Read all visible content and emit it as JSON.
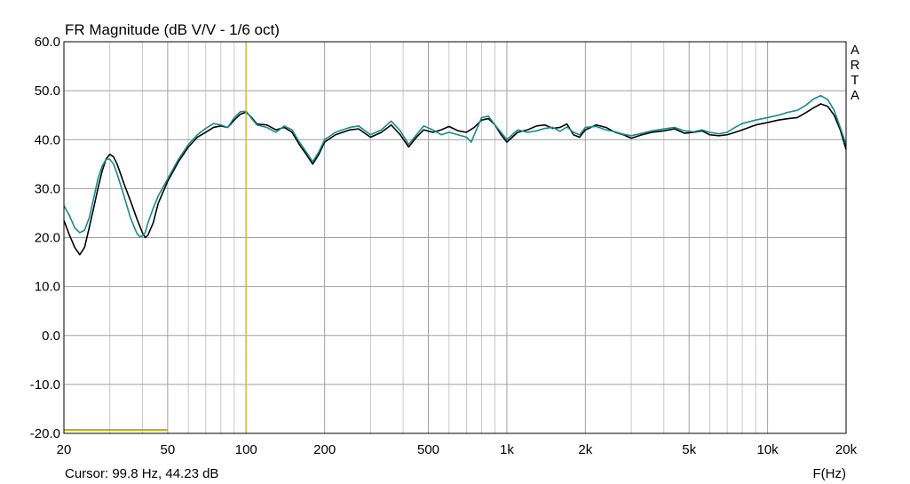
{
  "chart_data": {
    "type": "line",
    "title": "FR Magnitude (dB V/V - 1/6 oct)",
    "xlabel": "F(Hz)",
    "ylabel": "",
    "x_scale": "log",
    "xlim": [
      20,
      20000
    ],
    "ylim": [
      -20,
      60
    ],
    "grid": true,
    "x_ticks": [
      {
        "value": 20,
        "label": "20"
      },
      {
        "value": 50,
        "label": "50"
      },
      {
        "value": 100,
        "label": "100"
      },
      {
        "value": 200,
        "label": "200"
      },
      {
        "value": 500,
        "label": "500"
      },
      {
        "value": 1000,
        "label": "1k"
      },
      {
        "value": 2000,
        "label": "2k"
      },
      {
        "value": 5000,
        "label": "5k"
      },
      {
        "value": 10000,
        "label": "10k"
      },
      {
        "value": 20000,
        "label": "20k"
      }
    ],
    "y_ticks": [
      {
        "value": 60,
        "label": "60.0"
      },
      {
        "value": 50,
        "label": "50.0"
      },
      {
        "value": 40,
        "label": "40.0"
      },
      {
        "value": 30,
        "label": "30.0"
      },
      {
        "value": 20,
        "label": "20.0"
      },
      {
        "value": 10,
        "label": "10.0"
      },
      {
        "value": 0,
        "label": "0.0"
      },
      {
        "value": -10,
        "label": "-10.0"
      },
      {
        "value": -20,
        "label": "-20.0"
      }
    ],
    "watermark": "ARTA",
    "cursor_text": "Cursor: 99.8 Hz, 44.23 dB",
    "cursor_x": 99.8,
    "reference_level": {
      "y": -19.3,
      "x_start": 20,
      "x_end": 50,
      "color": "#b3b300"
    },
    "cursor_color": "#c8c800",
    "series": [
      {
        "color": "#000000",
        "points": [
          [
            20,
            23.5
          ],
          [
            21,
            20.5
          ],
          [
            22,
            18
          ],
          [
            23,
            16.5
          ],
          [
            24,
            18
          ],
          [
            25,
            22
          ],
          [
            26,
            26
          ],
          [
            27,
            30
          ],
          [
            28,
            33.5
          ],
          [
            29,
            36
          ],
          [
            30,
            37
          ],
          [
            31,
            36.5
          ],
          [
            32,
            35
          ],
          [
            34,
            31
          ],
          [
            36,
            27.5
          ],
          [
            38,
            24
          ],
          [
            40,
            21
          ],
          [
            41,
            20
          ],
          [
            42,
            20.5
          ],
          [
            44,
            23
          ],
          [
            46,
            27
          ],
          [
            50,
            31.5
          ],
          [
            55,
            35.5
          ],
          [
            60,
            38.5
          ],
          [
            65,
            40.5
          ],
          [
            70,
            41.5
          ],
          [
            75,
            42.5
          ],
          [
            80,
            42.8
          ],
          [
            85,
            42.5
          ],
          [
            90,
            44
          ],
          [
            95,
            45.2
          ],
          [
            100,
            45.6
          ],
          [
            105,
            44.5
          ],
          [
            110,
            43.2
          ],
          [
            120,
            43
          ],
          [
            130,
            42
          ],
          [
            140,
            42.5
          ],
          [
            150,
            41.5
          ],
          [
            160,
            39
          ],
          [
            170,
            37
          ],
          [
            180,
            35
          ],
          [
            190,
            37
          ],
          [
            200,
            39.5
          ],
          [
            220,
            41
          ],
          [
            250,
            42
          ],
          [
            270,
            42.2
          ],
          [
            300,
            40.5
          ],
          [
            330,
            41.5
          ],
          [
            360,
            43
          ],
          [
            390,
            41
          ],
          [
            420,
            38.5
          ],
          [
            450,
            40.5
          ],
          [
            480,
            42
          ],
          [
            520,
            41.5
          ],
          [
            560,
            42
          ],
          [
            600,
            42.7
          ],
          [
            650,
            41.8
          ],
          [
            700,
            41.5
          ],
          [
            750,
            42.5
          ],
          [
            800,
            44
          ],
          [
            850,
            44.3
          ],
          [
            900,
            43
          ],
          [
            950,
            41
          ],
          [
            1000,
            39.5
          ],
          [
            1100,
            41.5
          ],
          [
            1200,
            42
          ],
          [
            1300,
            42.8
          ],
          [
            1400,
            43
          ],
          [
            1500,
            42.3
          ],
          [
            1600,
            42.5
          ],
          [
            1700,
            43.2
          ],
          [
            1800,
            41
          ],
          [
            1900,
            40.5
          ],
          [
            2000,
            42
          ],
          [
            2200,
            43
          ],
          [
            2400,
            42.5
          ],
          [
            2600,
            41.5
          ],
          [
            2800,
            41
          ],
          [
            3000,
            40.3
          ],
          [
            3300,
            41
          ],
          [
            3600,
            41.5
          ],
          [
            4000,
            41.8
          ],
          [
            4400,
            42.2
          ],
          [
            4800,
            41.3
          ],
          [
            5200,
            41.5
          ],
          [
            5600,
            41.8
          ],
          [
            6000,
            41
          ],
          [
            6500,
            40.8
          ],
          [
            7000,
            41
          ],
          [
            7500,
            41.5
          ],
          [
            8000,
            42
          ],
          [
            9000,
            43
          ],
          [
            10000,
            43.5
          ],
          [
            11000,
            44
          ],
          [
            12000,
            44.3
          ],
          [
            13000,
            44.5
          ],
          [
            14000,
            45.5
          ],
          [
            15000,
            46.5
          ],
          [
            16000,
            47.3
          ],
          [
            17000,
            46.8
          ],
          [
            18000,
            45
          ],
          [
            19000,
            42
          ],
          [
            20000,
            38
          ]
        ]
      },
      {
        "color": "#1a8a8a",
        "points": [
          [
            20,
            26.5
          ],
          [
            21,
            24.5
          ],
          [
            22,
            22
          ],
          [
            23,
            21
          ],
          [
            24,
            21.5
          ],
          [
            25,
            24
          ],
          [
            26,
            28
          ],
          [
            27,
            32
          ],
          [
            28,
            34.5
          ],
          [
            29,
            36
          ],
          [
            30,
            36
          ],
          [
            31,
            35
          ],
          [
            32,
            33
          ],
          [
            34,
            28.5
          ],
          [
            36,
            24
          ],
          [
            38,
            21
          ],
          [
            39,
            20.2
          ],
          [
            40,
            20.3
          ],
          [
            41,
            21
          ],
          [
            42,
            23
          ],
          [
            44,
            26
          ],
          [
            46,
            28.5
          ],
          [
            50,
            32
          ],
          [
            55,
            36
          ],
          [
            60,
            39
          ],
          [
            65,
            41
          ],
          [
            70,
            42.3
          ],
          [
            75,
            43.3
          ],
          [
            80,
            43
          ],
          [
            85,
            42.5
          ],
          [
            90,
            44.5
          ],
          [
            95,
            45.7
          ],
          [
            100,
            45.8
          ],
          [
            105,
            44.3
          ],
          [
            110,
            43
          ],
          [
            120,
            42.5
          ],
          [
            130,
            41.5
          ],
          [
            140,
            42.8
          ],
          [
            150,
            42
          ],
          [
            160,
            39.5
          ],
          [
            170,
            37.5
          ],
          [
            180,
            35.5
          ],
          [
            190,
            37.5
          ],
          [
            200,
            40
          ],
          [
            220,
            41.5
          ],
          [
            250,
            42.5
          ],
          [
            270,
            42.8
          ],
          [
            300,
            41
          ],
          [
            330,
            42
          ],
          [
            360,
            43.8
          ],
          [
            390,
            41.8
          ],
          [
            420,
            39
          ],
          [
            450,
            41
          ],
          [
            480,
            42.8
          ],
          [
            520,
            42
          ],
          [
            560,
            41
          ],
          [
            600,
            41.5
          ],
          [
            650,
            41
          ],
          [
            700,
            40.5
          ],
          [
            730,
            39.5
          ],
          [
            750,
            41
          ],
          [
            800,
            44.5
          ],
          [
            850,
            44.8
          ],
          [
            900,
            43
          ],
          [
            950,
            41.5
          ],
          [
            1000,
            40
          ],
          [
            1100,
            42
          ],
          [
            1200,
            41.5
          ],
          [
            1300,
            41.8
          ],
          [
            1400,
            42.3
          ],
          [
            1500,
            42.5
          ],
          [
            1600,
            41.7
          ],
          [
            1700,
            42.6
          ],
          [
            1800,
            41.5
          ],
          [
            1900,
            41
          ],
          [
            2000,
            42.5
          ],
          [
            2200,
            42.7
          ],
          [
            2400,
            42
          ],
          [
            2600,
            41.6
          ],
          [
            2800,
            41.1
          ],
          [
            3000,
            40.8
          ],
          [
            3300,
            41.3
          ],
          [
            3600,
            41.8
          ],
          [
            4000,
            42.2
          ],
          [
            4400,
            42.5
          ],
          [
            4800,
            41.8
          ],
          [
            5200,
            41.6
          ],
          [
            5600,
            42
          ],
          [
            6000,
            41.5
          ],
          [
            6500,
            41.2
          ],
          [
            7000,
            41.5
          ],
          [
            7500,
            42.5
          ],
          [
            8000,
            43.3
          ],
          [
            9000,
            44
          ],
          [
            10000,
            44.5
          ],
          [
            11000,
            45
          ],
          [
            12000,
            45.6
          ],
          [
            13000,
            46
          ],
          [
            14000,
            47
          ],
          [
            15000,
            48.3
          ],
          [
            16000,
            49
          ],
          [
            17000,
            48.2
          ],
          [
            18000,
            46
          ],
          [
            19000,
            42.5
          ],
          [
            20000,
            39
          ]
        ]
      }
    ]
  }
}
